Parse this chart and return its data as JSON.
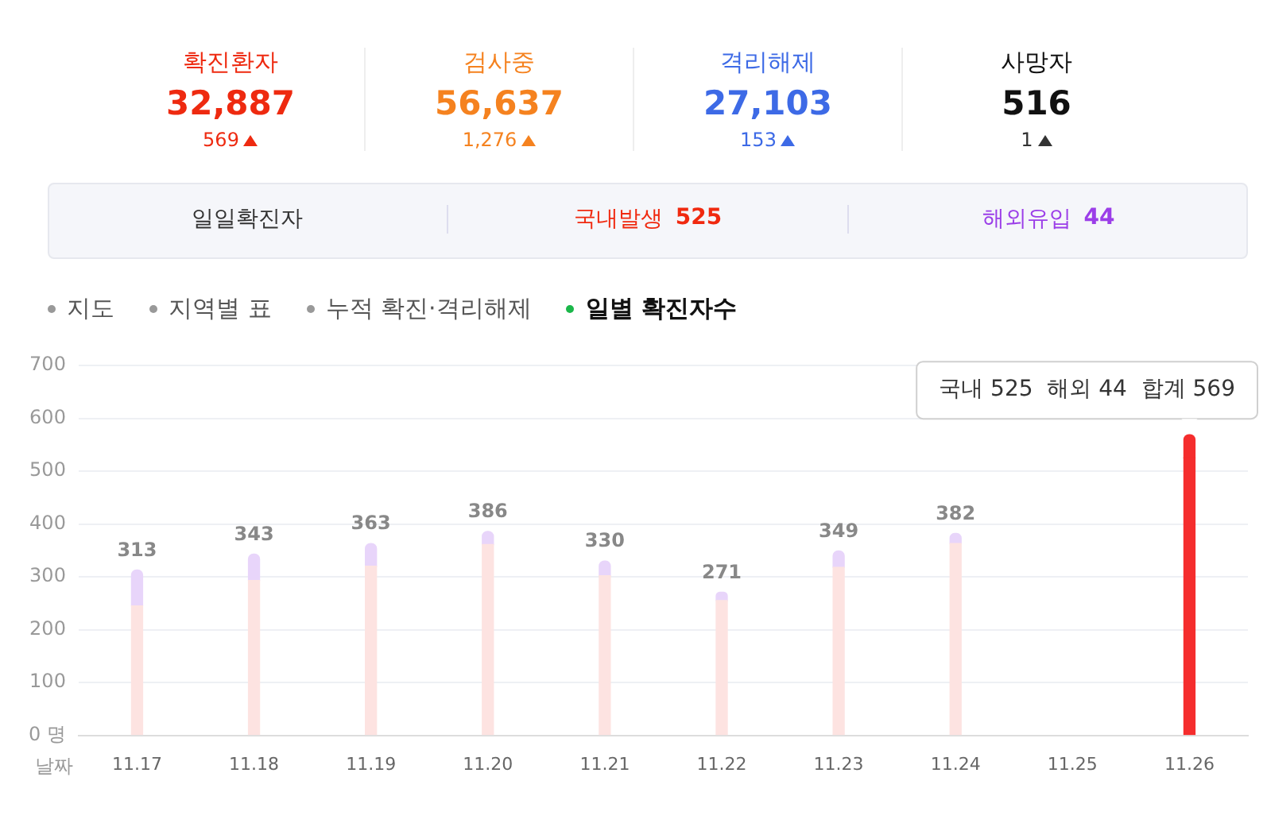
{
  "chart_data": [
    {
      "type": "other",
      "categories": [
        "확진환자",
        "검사중",
        "격리해제",
        "사망자"
      ],
      "series": [
        {
          "colors": [
            "#ee2a10",
            "#f5821f",
            "#3d6ae6",
            "#111111"
          ],
          "values": [
            32887,
            56637,
            27103,
            516
          ],
          "value_labels": [
            "32,887",
            "56,637",
            "27,103",
            "516"
          ]
        },
        {
          "colors": [
            "#ee2a10",
            "#f5821f",
            "#3d6ae6",
            "#333333"
          ],
          "values": [
            569,
            1276,
            153,
            1
          ],
          "value_labels": [
            "569",
            "1,276",
            "153",
            "1"
          ]
        }
      ]
    },
    {
      "type": "other",
      "categories": [
        "일일확진자",
        "국내발생",
        "해외유입"
      ],
      "values": [
        null,
        525,
        44
      ],
      "data_labels": true
    },
    {
      "type": "bar",
      "title": "일별 확진자수",
      "xlabel": "날짜",
      "stacked": true,
      "grid": "y",
      "legend": false,
      "categories": [
        "11.17",
        "11.18",
        "11.19",
        "11.20",
        "11.21",
        "11.22",
        "11.23",
        "11.24",
        "11.25",
        "11.26"
      ],
      "series": [
        {
          "colors": [
            "#fde3e1",
            "#fde3e1",
            "#fde3e1",
            "#fde3e1",
            "#fde3e1",
            "#fde3e1",
            "#fde3e1",
            "#fde3e1",
            "#fde3e1",
            "#f52d2d"
          ],
          "values": [
            245,
            293,
            320,
            361,
            302,
            255,
            318,
            363,
            null,
            525
          ]
        },
        {
          "colors": [
            "#e8d5fa",
            "#e8d5fa",
            "#e8d5fa",
            "#e8d5fa",
            "#e8d5fa",
            "#e8d5fa",
            "#e8d5fa",
            "#e8d5fa",
            "#e8d5fa",
            "#f52d2d"
          ],
          "values": [
            68,
            50,
            43,
            25,
            28,
            16,
            31,
            19,
            null,
            44
          ]
        }
      ],
      "totals": [
        "313",
        "343",
        "363",
        "386",
        "330",
        "271",
        "349",
        "382",
        null,
        null
      ],
      "ylim": [
        0,
        700
      ],
      "yticks": [
        {
          "value": 0,
          "label": "0 명"
        },
        100,
        200,
        300,
        400,
        500,
        600,
        700
      ],
      "annotations": [
        "지도",
        "지역별 표",
        "누적 확진·격리해제",
        {
          "text": "국내 525  해외 44  합계 569",
          "x": "11.26",
          "y": 569
        }
      ]
    }
  ]
}
